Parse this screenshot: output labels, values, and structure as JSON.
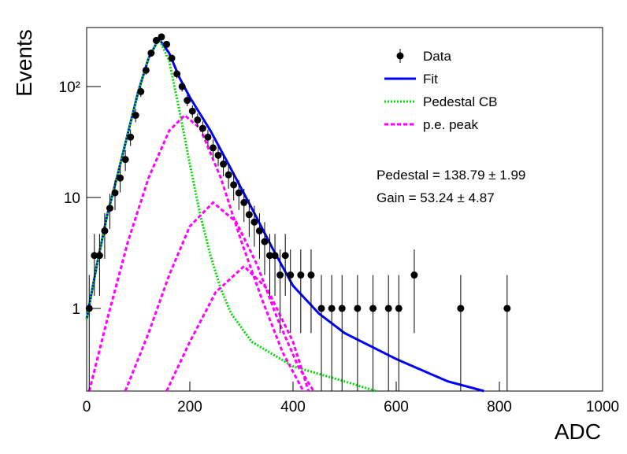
{
  "chart_data": {
    "type": "histfit",
    "x_label": "ADC",
    "y_label": "Events",
    "xlim": [
      0,
      1000
    ],
    "xticks": [
      0,
      200,
      400,
      600,
      800,
      1000
    ],
    "ylim": [
      0.18,
      340
    ],
    "log_y": true,
    "yticks": [
      1,
      10,
      {
        "value": 100,
        "label": "10²"
      }
    ],
    "legend_position": "upper right",
    "annotations": [
      "Pedestal = 138.79 ± 1.99",
      "Gain = 53.24 ± 4.87"
    ],
    "points": {
      "name": "Data",
      "color": "#000000",
      "x": [
        5,
        15,
        25,
        35,
        45,
        55,
        65,
        75,
        85,
        95,
        105,
        115,
        125,
        135,
        145,
        155,
        165,
        175,
        185,
        195,
        205,
        215,
        225,
        235,
        245,
        255,
        265,
        275,
        285,
        295,
        305,
        315,
        325,
        335,
        345,
        355,
        365,
        375,
        385,
        395,
        415,
        435,
        455,
        475,
        495,
        525,
        555,
        585,
        605,
        635,
        725,
        815
      ],
      "values": [
        1,
        3,
        3,
        5,
        8,
        11,
        15,
        22,
        35,
        55,
        90,
        140,
        200,
        260,
        280,
        240,
        180,
        130,
        100,
        75,
        60,
        50,
        42,
        35,
        28,
        24,
        20,
        16,
        13,
        11,
        9,
        7,
        6,
        5,
        4,
        3,
        3,
        2,
        3,
        2,
        2,
        2,
        1,
        1,
        1,
        1,
        1,
        1,
        1,
        2,
        1,
        1
      ],
      "errors": [
        1,
        1.7,
        1.7,
        2.2,
        2.8,
        3.3,
        3.9,
        4.7,
        5.9,
        7.4,
        9.5,
        11.8,
        14.1,
        16.1,
        16.7,
        15.5,
        13.4,
        11.4,
        10,
        8.7,
        7.7,
        7.1,
        6.5,
        5.9,
        5.3,
        4.9,
        4.5,
        4,
        3.6,
        3.3,
        3,
        2.6,
        2.4,
        2.2,
        2,
        1.7,
        1.7,
        1.4,
        1.7,
        1.4,
        1.4,
        1.4,
        1,
        1,
        1,
        1,
        1,
        1,
        1,
        1.4,
        1,
        1
      ]
    },
    "series": [
      {
        "name": "Fit",
        "color": "#0000ff",
        "style": "solid",
        "x": [
          0,
          20,
          40,
          60,
          80,
          100,
          120,
          140,
          160,
          180,
          200,
          240,
          280,
          320,
          360,
          400,
          450,
          500,
          600,
          700,
          770
        ],
        "values": [
          0.8,
          2.5,
          7,
          16,
          38,
          90,
          180,
          270,
          200,
          120,
          80,
          40,
          18,
          8,
          3.5,
          1.6,
          0.9,
          0.6,
          0.35,
          0.22,
          0.18
        ]
      },
      {
        "name": "Pedestal CB",
        "color": "#00dd00",
        "style": "dotted",
        "x": [
          0,
          20,
          40,
          60,
          80,
          100,
          120,
          140,
          160,
          180,
          200,
          220,
          240,
          260,
          280,
          320,
          400,
          500,
          560
        ],
        "values": [
          0.8,
          2.5,
          7,
          16,
          38,
          90,
          180,
          270,
          170,
          60,
          20,
          7,
          3,
          1.5,
          0.9,
          0.5,
          0.3,
          0.22,
          0.18
        ]
      },
      {
        "name": "p.e. peak",
        "color": "#ff00ff",
        "style": "dashed",
        "x": [
          5,
          40,
          80,
          120,
          160,
          190,
          220,
          260,
          300,
          340,
          380,
          420,
          null,
          75,
          120,
          160,
          200,
          245,
          290,
          330,
          370,
          410,
          440,
          null,
          155,
          200,
          250,
          305,
          350,
          400,
          430
        ],
        "values": [
          0.18,
          0.8,
          4,
          15,
          40,
          55,
          42,
          15,
          4,
          1.2,
          0.4,
          0.18,
          null,
          0.18,
          0.6,
          2,
          5.5,
          9,
          6,
          2.5,
          0.8,
          0.3,
          0.18,
          null,
          0.18,
          0.5,
          1.4,
          2.4,
          1.5,
          0.5,
          0.18
        ]
      }
    ]
  }
}
